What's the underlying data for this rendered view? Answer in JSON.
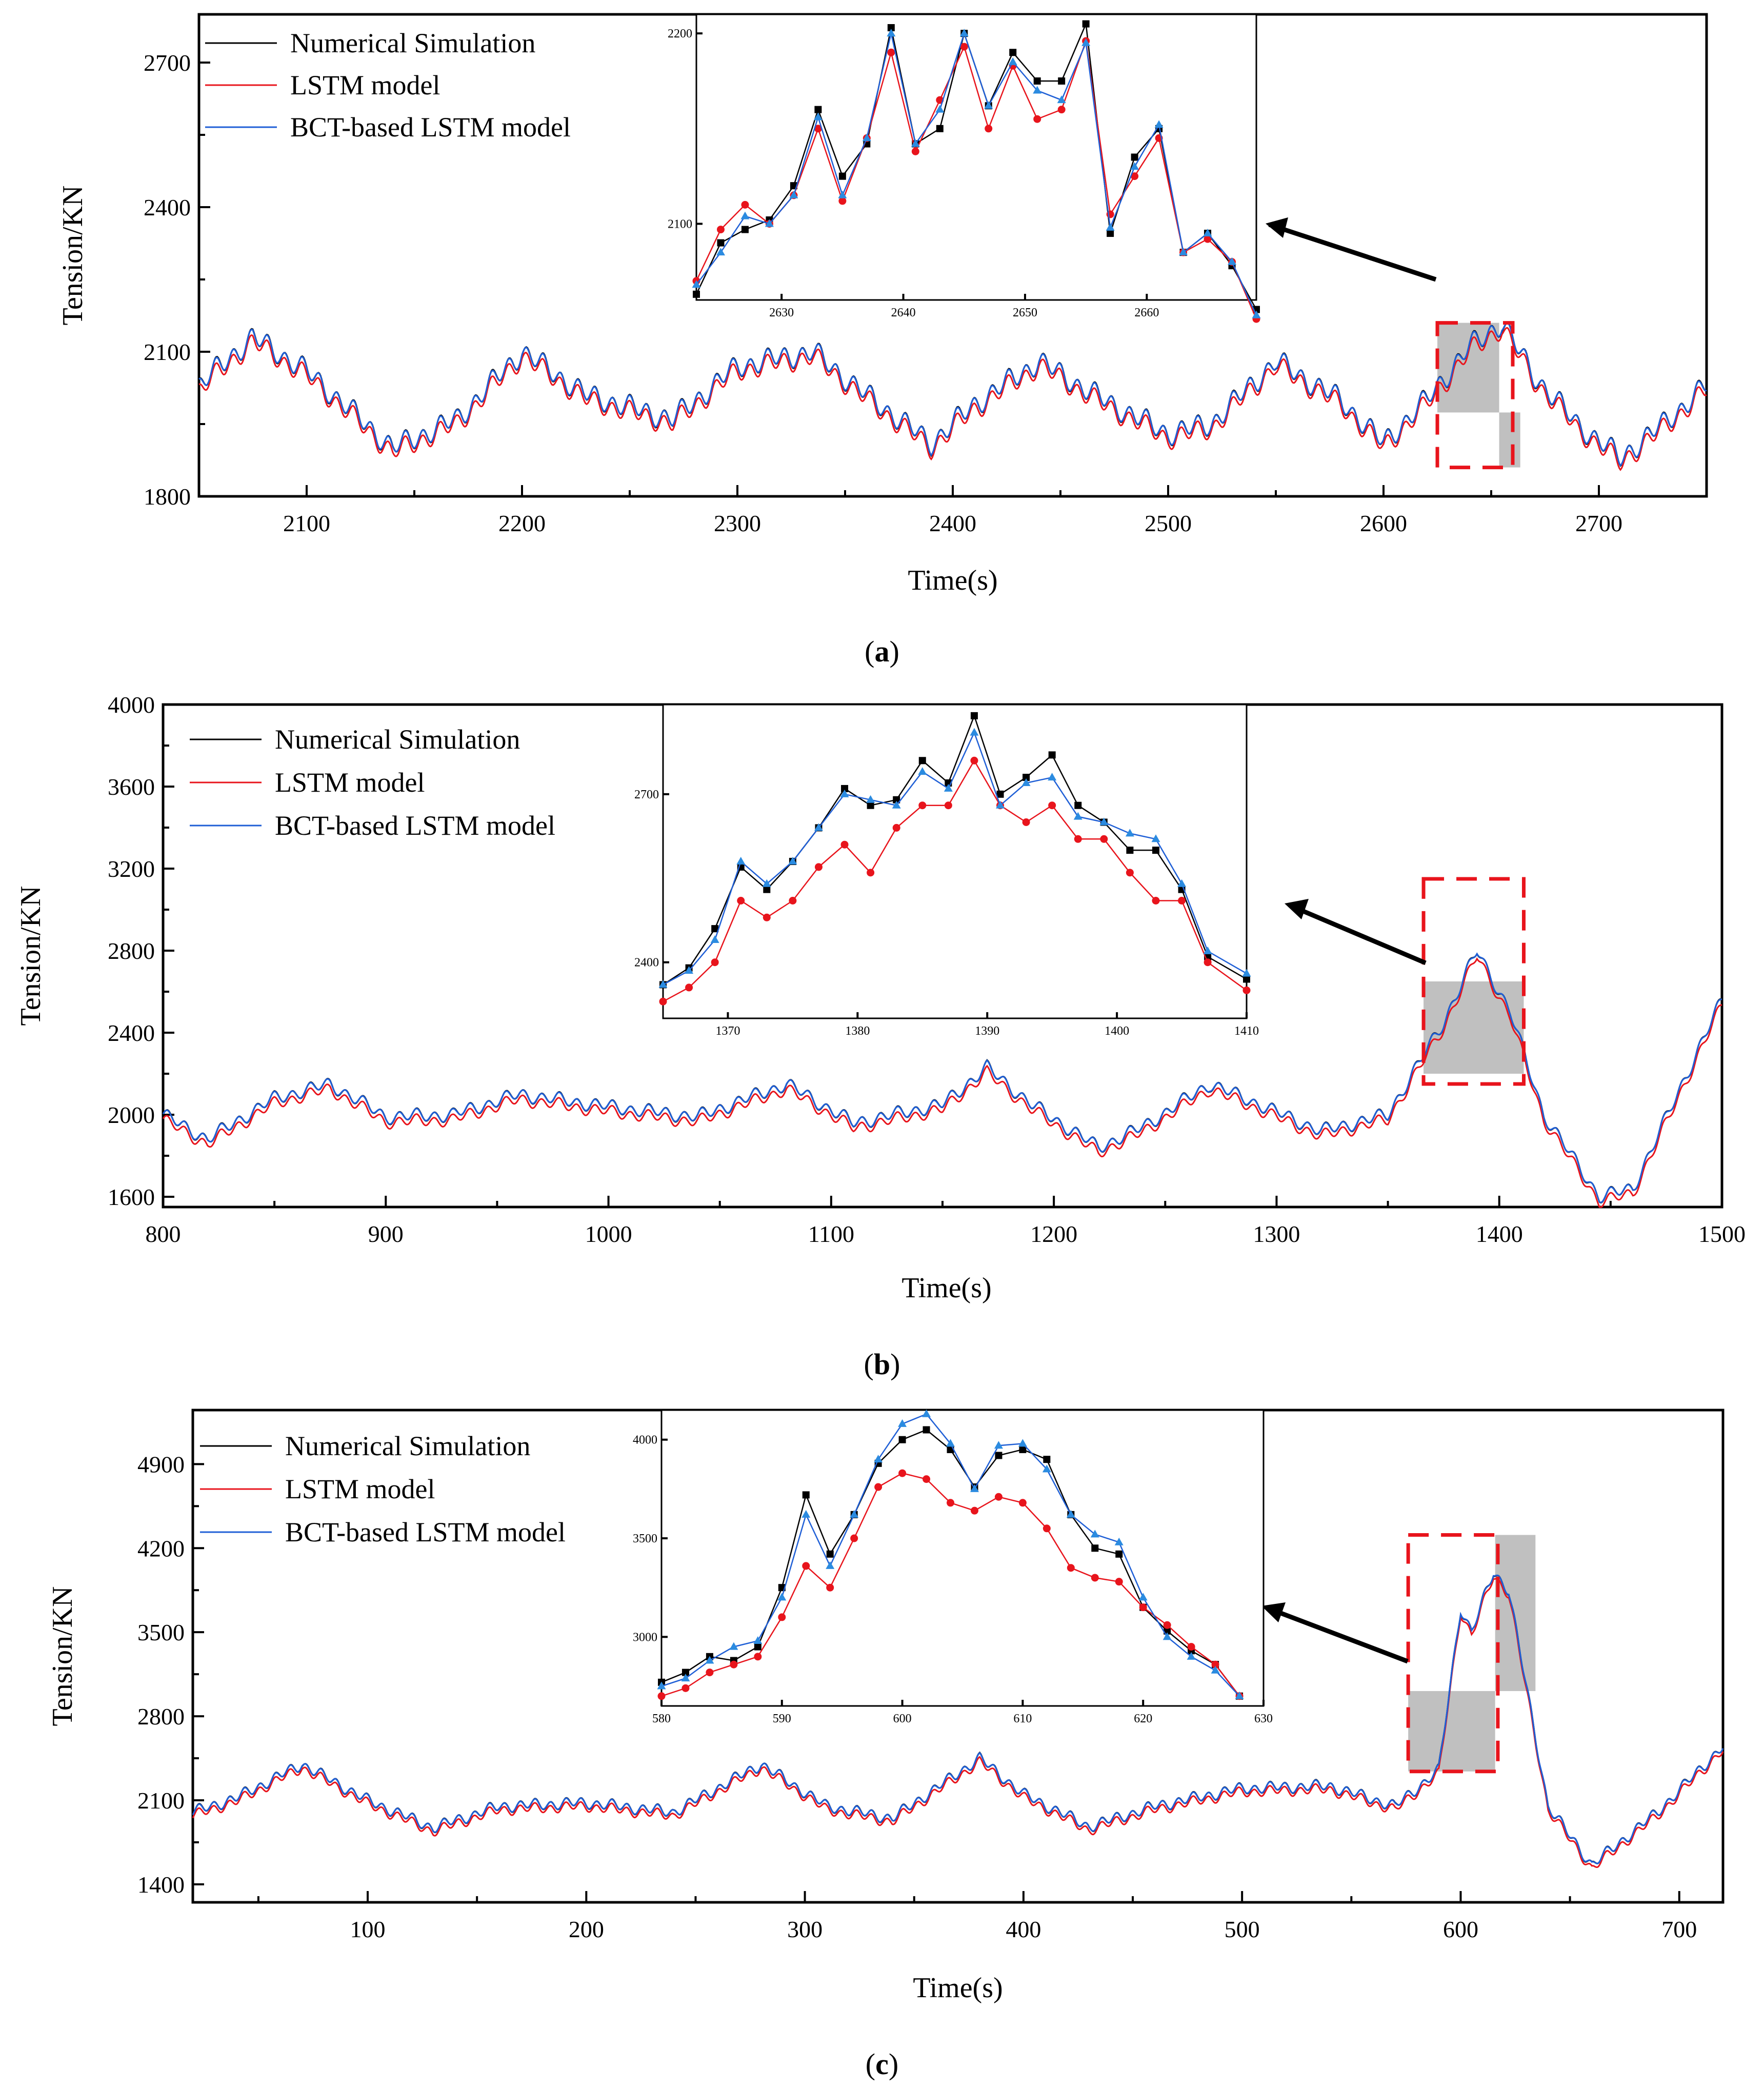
{
  "legend": [
    {
      "label": "Numerical Simulation",
      "color": "#000000"
    },
    {
      "label": "LSTM model",
      "color": "#e8141c"
    },
    {
      "label": "BCT-based LSTM model",
      "color": "#1f5fd6"
    }
  ],
  "chart_data": [
    {
      "type": "line",
      "caption": "(a)",
      "caption_letter": "a",
      "xlabel": "Time(s)",
      "ylabel": "Tension/KN",
      "xlim": [
        2050,
        2750
      ],
      "ylim": [
        1800,
        2800
      ],
      "xticks": [
        2100,
        2200,
        2300,
        2400,
        2500,
        2600,
        2700
      ],
      "yticks": [
        1800,
        2100,
        2400,
        2700
      ],
      "baseline": [
        [
          2050,
          2030
        ],
        [
          2075,
          2130
        ],
        [
          2100,
          2060
        ],
        [
          2140,
          1900
        ],
        [
          2170,
          1960
        ],
        [
          2200,
          2100
        ],
        [
          2230,
          2010
        ],
        [
          2270,
          1960
        ],
        [
          2300,
          2070
        ],
        [
          2335,
          2100
        ],
        [
          2360,
          2010
        ],
        [
          2390,
          1910
        ],
        [
          2410,
          1990
        ],
        [
          2440,
          2080
        ],
        [
          2470,
          2000
        ],
        [
          2500,
          1930
        ],
        [
          2520,
          1950
        ],
        [
          2550,
          2080
        ],
        [
          2580,
          2000
        ],
        [
          2600,
          1910
        ],
        [
          2620,
          2000
        ],
        [
          2640,
          2110
        ],
        [
          2655,
          2160
        ],
        [
          2670,
          2050
        ],
        [
          2690,
          1950
        ],
        [
          2710,
          1880
        ],
        [
          2730,
          1950
        ],
        [
          2750,
          2030
        ]
      ],
      "ripple": {
        "period": 8,
        "amplitude": 25
      },
      "lstm_offset": -10,
      "zoom": {
        "x0": 2625,
        "x1": 2660,
        "y0": 1860,
        "y1": 2160
      },
      "inset": {
        "xlim": [
          2623,
          2669
        ],
        "ylim": [
          2060,
          2210
        ],
        "xticks": [
          2630,
          2640,
          2650,
          2660
        ],
        "yticks": [
          2100,
          2200
        ],
        "x": [
          2623,
          2625,
          2627,
          2629,
          2631,
          2633,
          2635,
          2637,
          2639,
          2641,
          2643,
          2645,
          2647,
          2649,
          2651,
          2653,
          2655,
          2657,
          2659,
          2661,
          2663,
          2665,
          2667,
          2669
        ],
        "numerical": [
          2063,
          2090,
          2097,
          2102,
          2120,
          2160,
          2125,
          2142,
          2203,
          2142,
          2150,
          2200,
          2162,
          2190,
          2175,
          2175,
          2205,
          2095,
          2135,
          2150,
          2085,
          2095,
          2078,
          2055
        ],
        "lstm": [
          2070,
          2097,
          2110,
          2100,
          2115,
          2150,
          2112,
          2145,
          2190,
          2138,
          2165,
          2193,
          2150,
          2183,
          2155,
          2160,
          2196,
          2105,
          2125,
          2145,
          2085,
          2092,
          2080,
          2050
        ],
        "bct": [
          2068,
          2085,
          2104,
          2100,
          2115,
          2156,
          2115,
          2145,
          2200,
          2142,
          2160,
          2200,
          2162,
          2185,
          2170,
          2165,
          2195,
          2098,
          2130,
          2152,
          2085,
          2095,
          2080,
          2052
        ]
      }
    },
    {
      "type": "line",
      "caption": "(b)",
      "caption_letter": "b",
      "xlabel": "Time(s)",
      "ylabel": "Tension/KN",
      "xlim": [
        800,
        1500
      ],
      "ylim": [
        1550,
        4000
      ],
      "xticks": [
        800,
        900,
        1000,
        1100,
        1200,
        1300,
        1400,
        1500
      ],
      "yticks": [
        1600,
        2000,
        2400,
        2800,
        3200,
        3600,
        4000
      ],
      "baseline": [
        [
          800,
          2000
        ],
        [
          820,
          1880
        ],
        [
          850,
          2080
        ],
        [
          875,
          2150
        ],
        [
          900,
          1990
        ],
        [
          930,
          2000
        ],
        [
          960,
          2100
        ],
        [
          1000,
          2040
        ],
        [
          1040,
          1990
        ],
        [
          1080,
          2150
        ],
        [
          1110,
          1960
        ],
        [
          1150,
          2050
        ],
        [
          1170,
          2230
        ],
        [
          1190,
          2050
        ],
        [
          1220,
          1840
        ],
        [
          1240,
          1940
        ],
        [
          1270,
          2150
        ],
        [
          1290,
          2060
        ],
        [
          1320,
          1920
        ],
        [
          1350,
          2000
        ],
        [
          1375,
          2450
        ],
        [
          1390,
          2800
        ],
        [
          1405,
          2500
        ],
        [
          1420,
          2000
        ],
        [
          1445,
          1600
        ],
        [
          1460,
          1640
        ],
        [
          1500,
          2560
        ]
      ],
      "ripple": {
        "period": 8,
        "amplitude": 35
      },
      "lstm_offset": -25,
      "zoom": {
        "x0": 1366,
        "x1": 1411,
        "y0": 2150,
        "y1": 3150
      },
      "inset": {
        "xlim": [
          1365,
          1410
        ],
        "ylim": [
          2300,
          2860
        ],
        "xticks": [
          1370,
          1380,
          1390,
          1400,
          1410
        ],
        "yticks": [
          2400,
          2700
        ],
        "x": [
          1365,
          1367,
          1369,
          1371,
          1373,
          1375,
          1377,
          1379,
          1381,
          1383,
          1385,
          1387,
          1389,
          1391,
          1393,
          1395,
          1397,
          1399,
          1401,
          1403,
          1405,
          1407,
          1410
        ],
        "numerical": [
          2360,
          2390,
          2460,
          2570,
          2530,
          2580,
          2640,
          2710,
          2680,
          2690,
          2760,
          2720,
          2840,
          2700,
          2730,
          2770,
          2680,
          2650,
          2600,
          2600,
          2530,
          2410,
          2370
        ],
        "lstm": [
          2330,
          2355,
          2400,
          2510,
          2480,
          2510,
          2570,
          2610,
          2560,
          2640,
          2680,
          2680,
          2760,
          2680,
          2650,
          2680,
          2620,
          2620,
          2560,
          2510,
          2510,
          2400,
          2350
        ],
        "bct": [
          2360,
          2385,
          2440,
          2580,
          2540,
          2580,
          2640,
          2700,
          2690,
          2680,
          2740,
          2710,
          2810,
          2680,
          2720,
          2730,
          2660,
          2650,
          2630,
          2620,
          2540,
          2420,
          2380
        ]
      }
    },
    {
      "type": "line",
      "caption": "(c)",
      "caption_letter": "c",
      "xlabel": "Time(s)",
      "ylabel": "Tension/KN",
      "xlim": [
        20,
        720
      ],
      "ylim": [
        1250,
        5350
      ],
      "xticks": [
        100,
        200,
        300,
        400,
        500,
        600,
        700
      ],
      "yticks": [
        1400,
        2100,
        2800,
        3500,
        4200,
        4900
      ],
      "baseline": [
        [
          20,
          2000
        ],
        [
          40,
          2120
        ],
        [
          70,
          2400
        ],
        [
          100,
          2100
        ],
        [
          130,
          1870
        ],
        [
          160,
          2050
        ],
        [
          200,
          2080
        ],
        [
          240,
          2000
        ],
        [
          280,
          2400
        ],
        [
          310,
          2050
        ],
        [
          340,
          1950
        ],
        [
          380,
          2450
        ],
        [
          400,
          2150
        ],
        [
          430,
          1880
        ],
        [
          460,
          2050
        ],
        [
          500,
          2200
        ],
        [
          540,
          2220
        ],
        [
          570,
          2050
        ],
        [
          590,
          2350
        ],
        [
          600,
          3700
        ],
        [
          605,
          3500
        ],
        [
          615,
          4000
        ],
        [
          622,
          3850
        ],
        [
          640,
          2050
        ],
        [
          660,
          1560
        ],
        [
          690,
          2000
        ],
        [
          720,
          2550
        ]
      ],
      "ripple": {
        "period": 7,
        "amplitude": 50
      },
      "lstm_offset": -30,
      "zoom": {
        "x0": 576,
        "x1": 617,
        "y0": 2340,
        "y1": 4310
      },
      "inset": {
        "xlim": [
          580,
          630
        ],
        "ylim": [
          2650,
          4150
        ],
        "xticks": [
          580,
          590,
          600,
          610,
          620,
          630
        ],
        "yticks": [
          3000,
          3500,
          4000
        ],
        "x": [
          580,
          582,
          584,
          586,
          588,
          590,
          592,
          594,
          596,
          598,
          600,
          602,
          604,
          606,
          608,
          610,
          612,
          614,
          616,
          618,
          620,
          622,
          624,
          626,
          628
        ],
        "numerical": [
          2770,
          2820,
          2900,
          2880,
          2950,
          3250,
          3720,
          3420,
          3620,
          3880,
          4000,
          4050,
          3950,
          3760,
          3920,
          3950,
          3900,
          3620,
          3450,
          3420,
          3150,
          3030,
          2930,
          2860,
          2700
        ],
        "lstm": [
          2700,
          2740,
          2820,
          2860,
          2900,
          3100,
          3360,
          3250,
          3500,
          3760,
          3830,
          3800,
          3680,
          3640,
          3710,
          3680,
          3550,
          3350,
          3300,
          3280,
          3150,
          3060,
          2950,
          2860,
          2700
        ],
        "bct": [
          2750,
          2790,
          2880,
          2950,
          2980,
          3200,
          3620,
          3360,
          3620,
          3900,
          4080,
          4130,
          3980,
          3750,
          3970,
          3980,
          3850,
          3620,
          3520,
          3480,
          3200,
          3000,
          2900,
          2830,
          2700
        ]
      }
    }
  ]
}
